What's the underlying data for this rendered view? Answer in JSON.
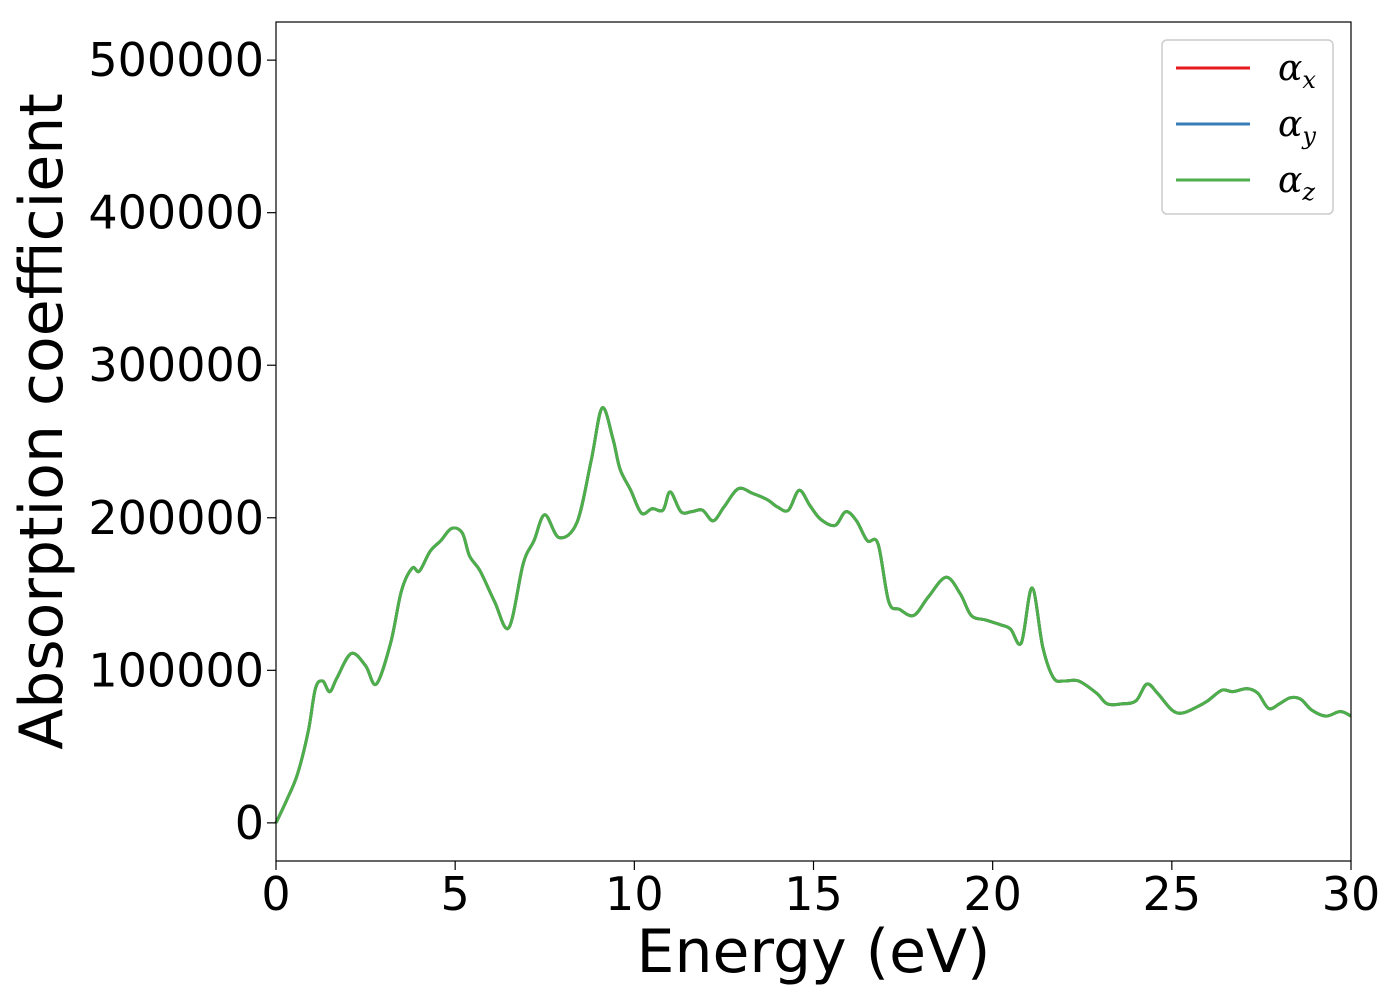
{
  "chart_data": {
    "type": "line",
    "title": "",
    "xlabel": "Energy (eV)",
    "ylabel": "Absorption coefficient",
    "xlim": [
      0,
      30
    ],
    "ylim": [
      -25000,
      525000
    ],
    "x_ticks": [
      0,
      5,
      10,
      15,
      20,
      25,
      30
    ],
    "y_ticks": [
      0,
      100000,
      200000,
      300000,
      400000,
      500000
    ],
    "grid": false,
    "legend_position": "top-right",
    "x": [
      0,
      0.3,
      0.6,
      0.9,
      1.1,
      1.3,
      1.5,
      1.7,
      2.1,
      2.5,
      2.8,
      3.2,
      3.5,
      3.8,
      4.0,
      4.3,
      4.6,
      4.9,
      5.2,
      5.4,
      5.7,
      6.1,
      6.5,
      6.9,
      7.2,
      7.5,
      7.9,
      8.4,
      8.8,
      9.1,
      9.4,
      9.6,
      9.9,
      10.2,
      10.5,
      10.8,
      11.0,
      11.3,
      11.6,
      11.9,
      12.2,
      12.5,
      12.9,
      13.3,
      13.7,
      14.0,
      14.3,
      14.6,
      14.9,
      15.2,
      15.6,
      15.9,
      16.2,
      16.5,
      16.8,
      17.1,
      17.4,
      17.8,
      18.2,
      18.7,
      19.1,
      19.4,
      19.8,
      20.2,
      20.5,
      20.8,
      21.1,
      21.4,
      21.7,
      22.0,
      22.4,
      22.9,
      23.2,
      23.6,
      24.0,
      24.3,
      24.6,
      25.0,
      25.3,
      25.7,
      26.0,
      26.4,
      26.7,
      27.1,
      27.4,
      27.7,
      28.0,
      28.3,
      28.6,
      28.9,
      29.3,
      29.7,
      30.0
    ],
    "series": [
      {
        "name": "αx",
        "color": "#e41a1c",
        "values": [
          0,
          15000,
          32000,
          60000,
          88000,
          93000,
          86000,
          95000,
          111000,
          103000,
          91000,
          118000,
          152000,
          167000,
          165000,
          178000,
          185000,
          193000,
          190000,
          175000,
          165000,
          145000,
          128000,
          170000,
          185000,
          202000,
          187000,
          197000,
          238000,
          272000,
          252000,
          232000,
          218000,
          203000,
          206000,
          205000,
          217000,
          204000,
          204000,
          205000,
          198000,
          207000,
          219000,
          216000,
          212000,
          207000,
          205000,
          218000,
          208000,
          199000,
          195000,
          204000,
          198000,
          185000,
          183000,
          145000,
          140000,
          136000,
          148000,
          161000,
          150000,
          136000,
          133000,
          130000,
          127000,
          118000,
          154000,
          115000,
          95000,
          93000,
          93000,
          85000,
          78000,
          78000,
          80000,
          91000,
          85000,
          74000,
          72000,
          76000,
          80000,
          87000,
          86000,
          88000,
          85000,
          75000,
          78000,
          82000,
          81000,
          74000,
          70000,
          73000,
          70000
        ]
      },
      {
        "name": "αy",
        "color": "#377eb8",
        "values": [
          0,
          15000,
          32000,
          60000,
          88000,
          93000,
          86000,
          95000,
          111000,
          103000,
          91000,
          118000,
          152000,
          167000,
          165000,
          178000,
          185000,
          193000,
          190000,
          175000,
          165000,
          145000,
          128000,
          170000,
          185000,
          202000,
          187000,
          197000,
          238000,
          272000,
          252000,
          232000,
          218000,
          203000,
          206000,
          205000,
          217000,
          204000,
          204000,
          205000,
          198000,
          207000,
          219000,
          216000,
          212000,
          207000,
          205000,
          218000,
          208000,
          199000,
          195000,
          204000,
          198000,
          185000,
          183000,
          145000,
          140000,
          136000,
          148000,
          161000,
          150000,
          136000,
          133000,
          130000,
          127000,
          118000,
          154000,
          115000,
          95000,
          93000,
          93000,
          85000,
          78000,
          78000,
          80000,
          91000,
          85000,
          74000,
          72000,
          76000,
          80000,
          87000,
          86000,
          88000,
          85000,
          75000,
          78000,
          82000,
          81000,
          74000,
          70000,
          73000,
          70000
        ]
      },
      {
        "name": "αz",
        "color": "#4daf4a",
        "values": [
          0,
          15000,
          32000,
          60000,
          88000,
          93000,
          86000,
          95000,
          111000,
          103000,
          91000,
          118000,
          152000,
          167000,
          165000,
          178000,
          185000,
          193000,
          190000,
          175000,
          165000,
          145000,
          128000,
          170000,
          185000,
          202000,
          187000,
          197000,
          238000,
          272000,
          252000,
          232000,
          218000,
          203000,
          206000,
          205000,
          217000,
          204000,
          204000,
          205000,
          198000,
          207000,
          219000,
          216000,
          212000,
          207000,
          205000,
          218000,
          208000,
          199000,
          195000,
          204000,
          198000,
          185000,
          183000,
          145000,
          140000,
          136000,
          148000,
          161000,
          150000,
          136000,
          133000,
          130000,
          127000,
          118000,
          154000,
          115000,
          95000,
          93000,
          93000,
          85000,
          78000,
          78000,
          80000,
          91000,
          85000,
          74000,
          72000,
          76000,
          80000,
          87000,
          86000,
          88000,
          85000,
          75000,
          78000,
          82000,
          81000,
          74000,
          70000,
          73000,
          70000
        ]
      }
    ]
  },
  "legend": [
    {
      "symbol": "α",
      "subscript": "x"
    },
    {
      "symbol": "α",
      "subscript": "y"
    },
    {
      "symbol": "α",
      "subscript": "z"
    }
  ]
}
